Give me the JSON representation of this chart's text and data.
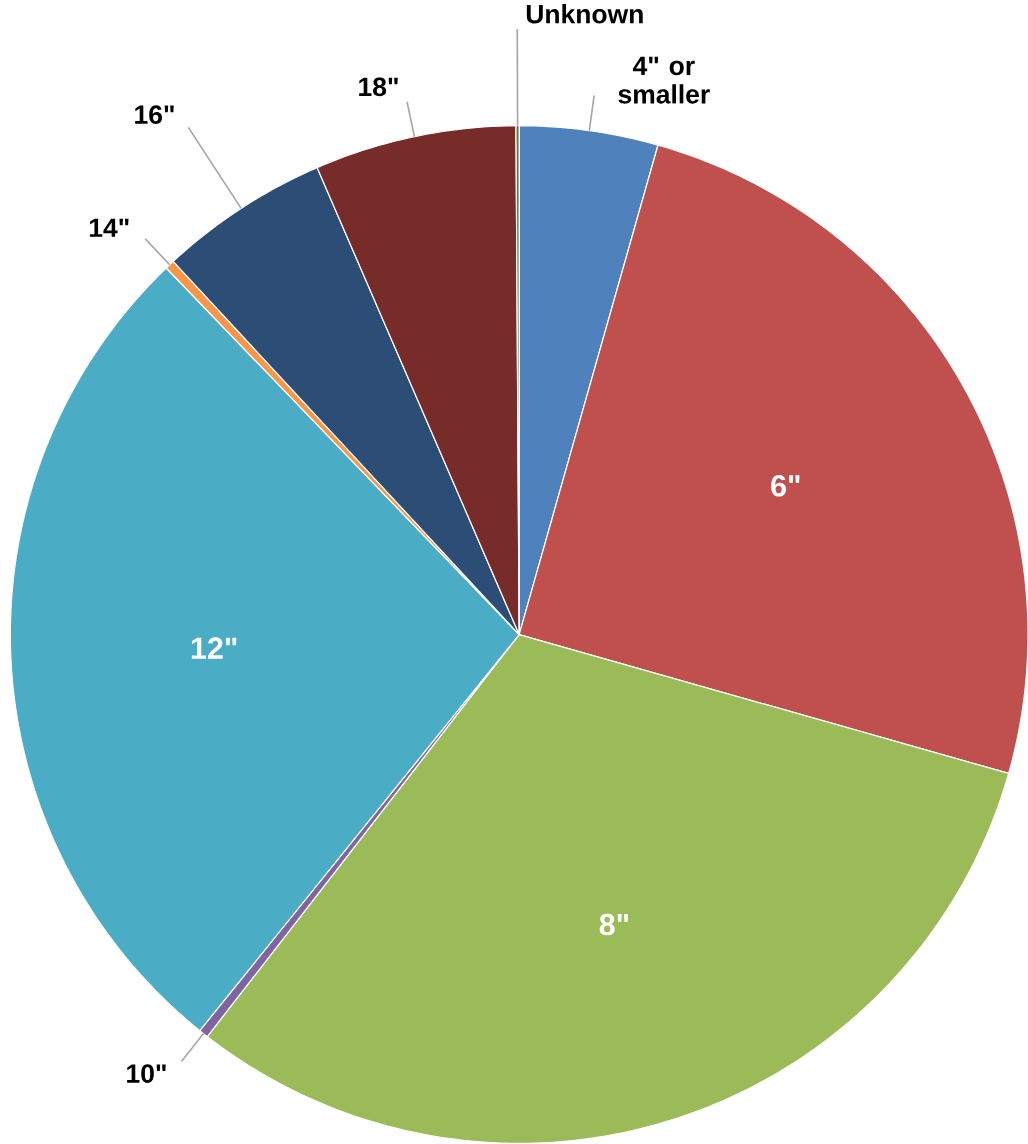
{
  "chart_data": {
    "type": "pie",
    "categories": [
      "4\" or smaller",
      "6\"",
      "8\"",
      "10\"",
      "12\"",
      "14\"",
      "16\"",
      "18\"",
      "Unknown"
    ],
    "values": [
      4.4,
      25,
      31.1,
      0.3,
      27,
      0.3,
      5.4,
      6.4,
      0.1
    ],
    "colors": [
      "#4f81bd",
      "#c0504d",
      "#9bbb59",
      "#8064a2",
      "#4bacc6",
      "#f79646",
      "#2c4d75",
      "#772c2a",
      "#5f7530"
    ]
  }
}
